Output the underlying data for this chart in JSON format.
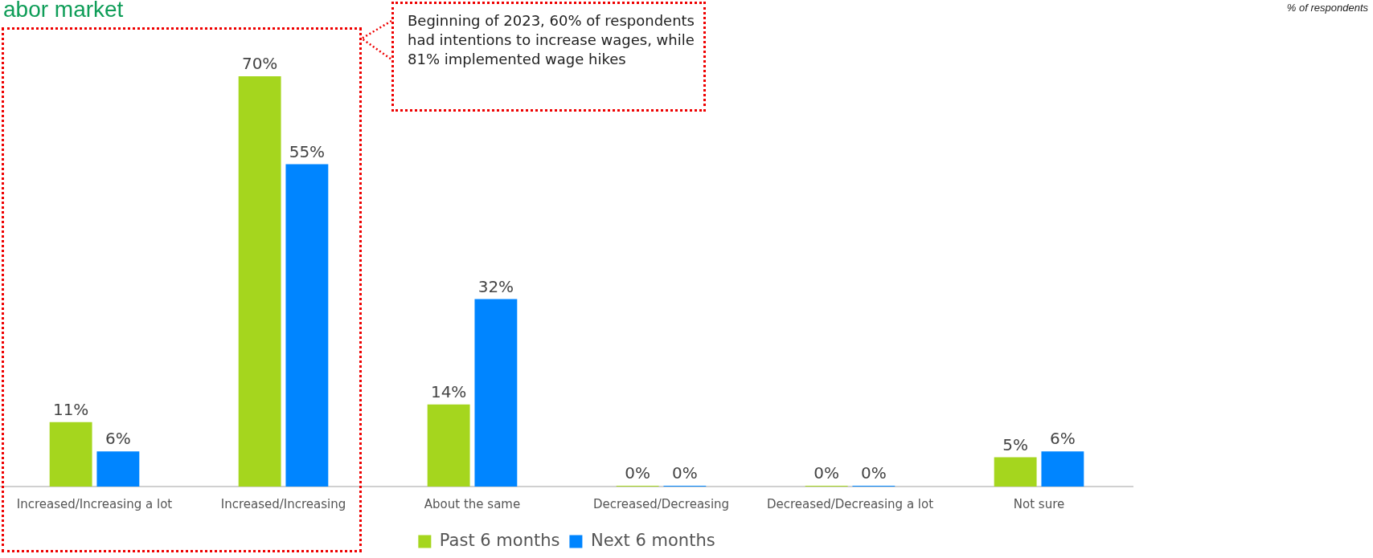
{
  "chart_data": {
    "type": "bar",
    "title": "abor market",
    "subtitle": "% of respondents",
    "categories": [
      "Increased/Increasing a lot",
      "Increased/Increasing",
      "About the same",
      "Decreased/Decreasing",
      "Decreased/Decreasing a lot",
      "Not sure"
    ],
    "series": [
      {
        "name": "Past 6 months",
        "color": "#a5d61e",
        "values": [
          11,
          70,
          14,
          0,
          0,
          5
        ],
        "value_labels": [
          "11%",
          "70%",
          "14%",
          "0%",
          "0%",
          "5%"
        ]
      },
      {
        "name": "Next 6 months",
        "color": "#0085ff",
        "values": [
          6,
          55,
          32,
          0,
          0,
          6
        ],
        "value_labels": [
          "6%",
          "55%",
          "32%",
          "0%",
          "0%",
          "6%"
        ]
      }
    ],
    "annotations": [
      "Beginning of 2023, 60% of respondents had intentions to increase wages, while 81% implemented wage hikes"
    ],
    "legend": "bottom",
    "grid": false,
    "tick_labels": "x"
  }
}
